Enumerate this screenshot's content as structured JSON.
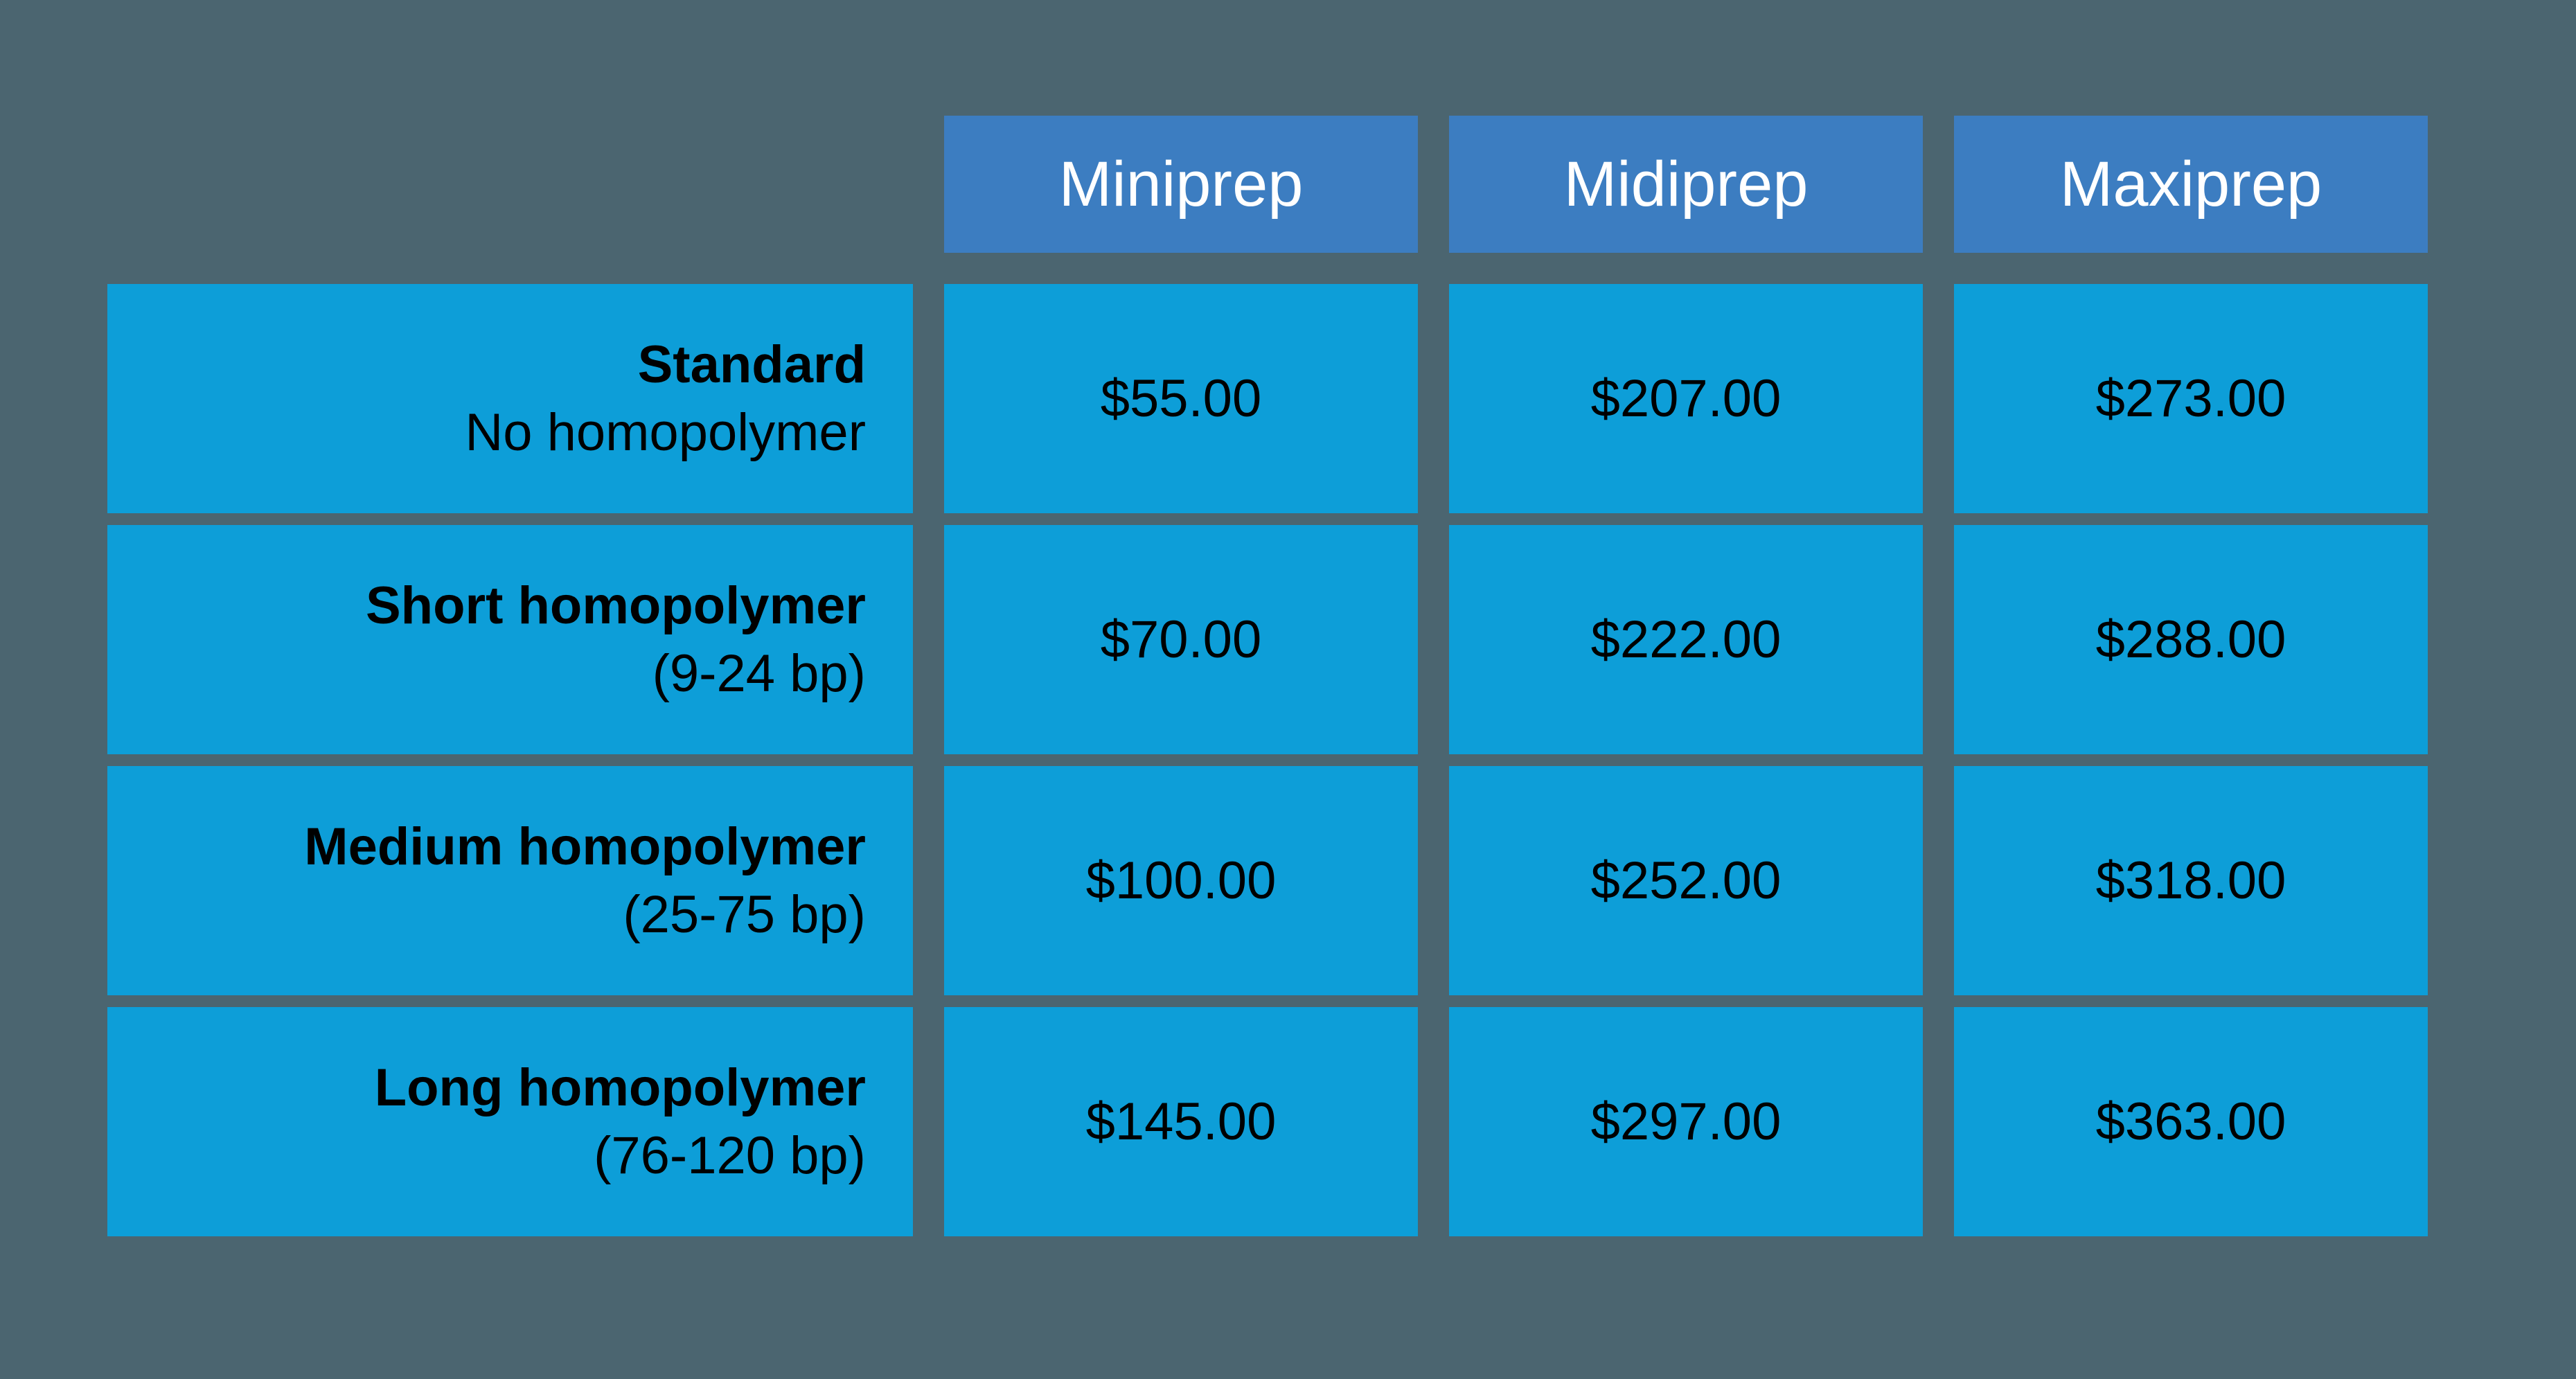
{
  "colors": {
    "background": "#4b6570",
    "header-bg": "#3c7dc1",
    "cell-bg": "#0d9ed8",
    "header-text": "#ffffff",
    "cell-text": "#000000"
  },
  "chart_data": {
    "type": "table",
    "columns": [
      "Miniprep",
      "Midiprep",
      "Maxiprep"
    ],
    "rows": [
      {
        "label": "Standard",
        "sublabel": "No homopolymer",
        "values": [
          "$55.00",
          "$207.00",
          "$273.00"
        ]
      },
      {
        "label": "Short homopolymer",
        "sublabel": "(9-24 bp)",
        "values": [
          "$70.00",
          "$222.00",
          "$288.00"
        ]
      },
      {
        "label": "Medium homopolymer",
        "sublabel": "(25-75 bp)",
        "values": [
          "$100.00",
          "$252.00",
          "$318.00"
        ]
      },
      {
        "label": "Long homopolymer",
        "sublabel": "(76-120 bp)",
        "values": [
          "$145.00",
          "$297.00",
          "$363.00"
        ]
      }
    ]
  }
}
